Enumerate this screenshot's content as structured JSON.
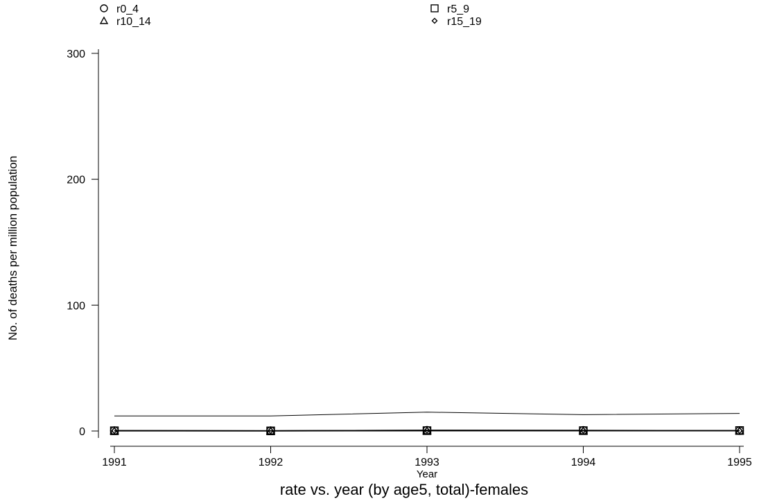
{
  "chart_data": {
    "type": "line",
    "title": "rate vs. year (by age5, total)-females",
    "xlabel": "Year",
    "ylabel": "No. of deaths per million population",
    "x": [
      1991,
      1992,
      1993,
      1994,
      1995
    ],
    "xlim": [
      1991,
      1995
    ],
    "ylim": [
      0,
      300
    ],
    "yticks": [
      0,
      100,
      200,
      300
    ],
    "grid": false,
    "legend_position": "top",
    "series": [
      {
        "name": "r0_4",
        "marker": "circle",
        "values": [
          0.3,
          0.2,
          0.6,
          0.5,
          0.3
        ]
      },
      {
        "name": "r5_9",
        "marker": "square",
        "values": [
          0.2,
          0.1,
          0.3,
          0.3,
          0.4
        ]
      },
      {
        "name": "r10_14",
        "marker": "triangle",
        "values": [
          0.1,
          0.1,
          0.2,
          0.2,
          0.2
        ]
      },
      {
        "name": "r15_19",
        "marker": "diamond",
        "values": [
          0.3,
          0.2,
          0.5,
          0.4,
          0.3
        ]
      },
      {
        "name": "",
        "marker": "none",
        "values": [
          12,
          12,
          15,
          13,
          14
        ]
      }
    ]
  },
  "colors": {
    "ink": "#000000",
    "background": "#ffffff"
  }
}
